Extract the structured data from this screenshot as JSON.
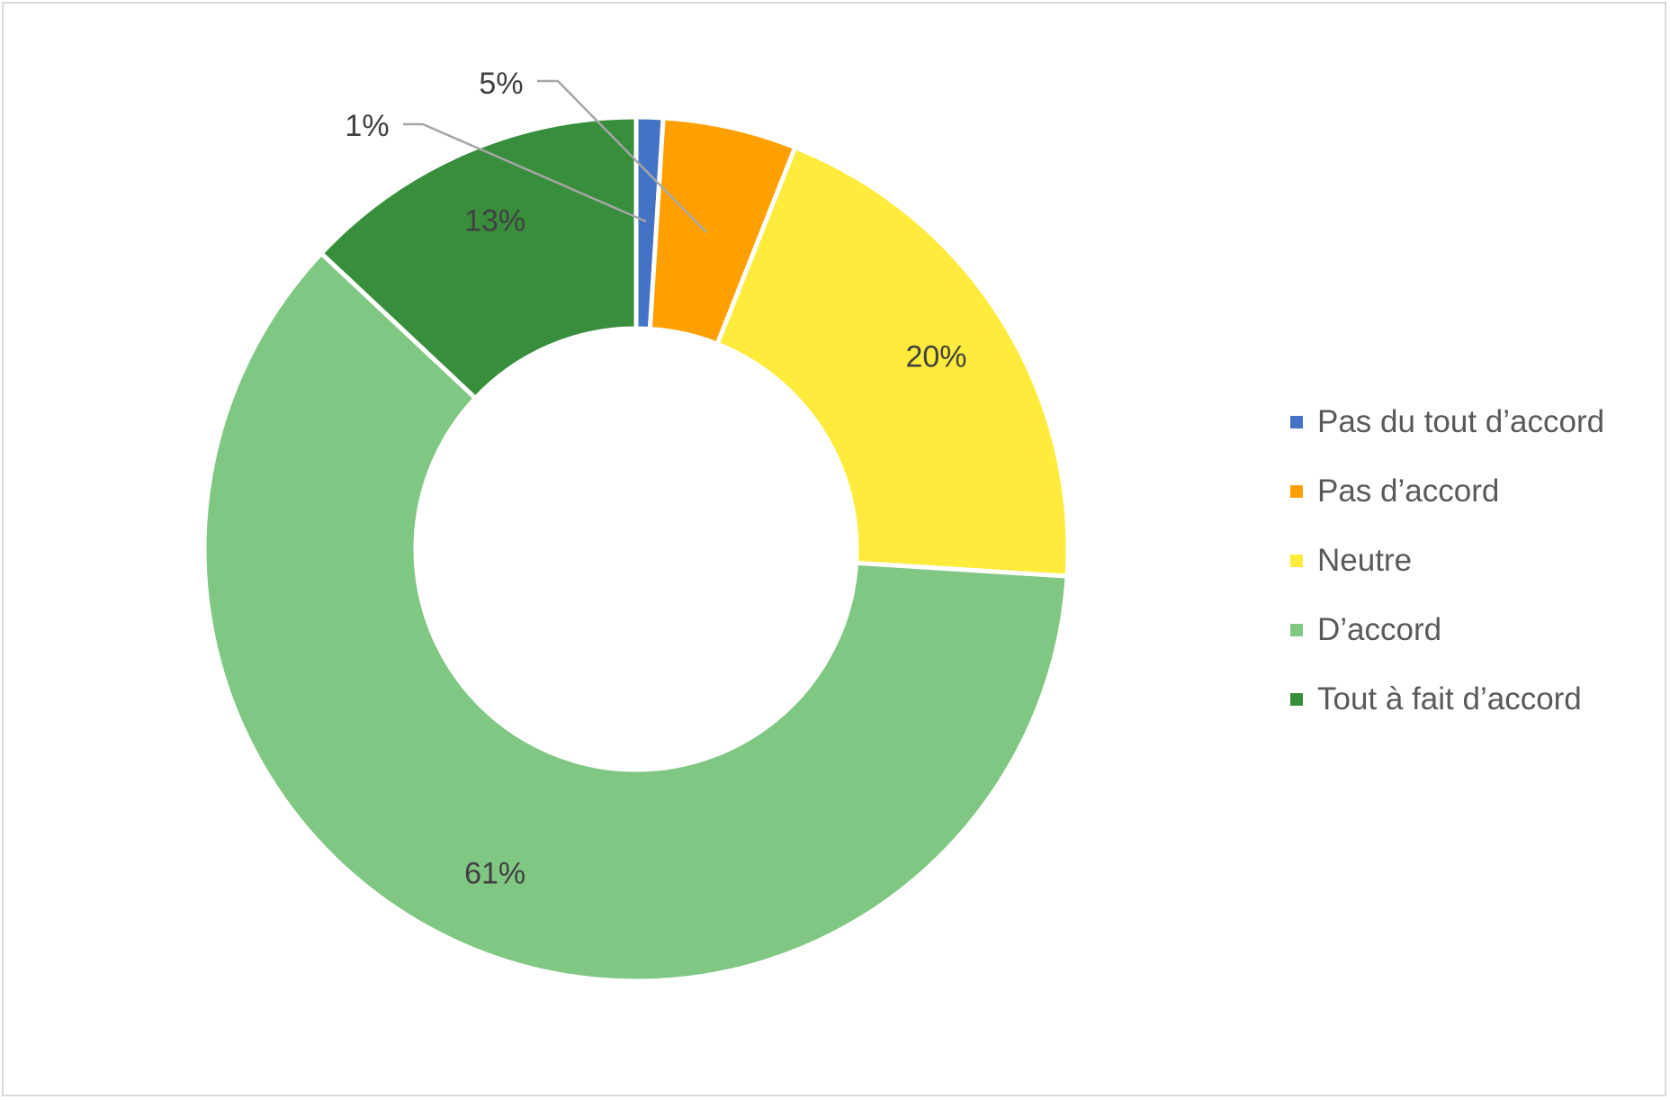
{
  "chart_data": {
    "type": "pie",
    "variant": "donut",
    "title": "",
    "categories": [
      "Pas du tout d’accord",
      "Pas d’accord",
      "Neutre",
      "D’accord",
      "Tout à fait d’accord"
    ],
    "values": [
      1,
      5,
      20,
      61,
      13
    ],
    "unit": "%",
    "data_labels": [
      "1%",
      "5%",
      "20%",
      "61%",
      "13%"
    ],
    "colors": [
      "#4472c4",
      "#ffa000",
      "#ffeb3b",
      "#81c784",
      "#388e3c"
    ],
    "start_angle_deg": 0,
    "direction": "clockwise",
    "legend_placement": "right"
  }
}
